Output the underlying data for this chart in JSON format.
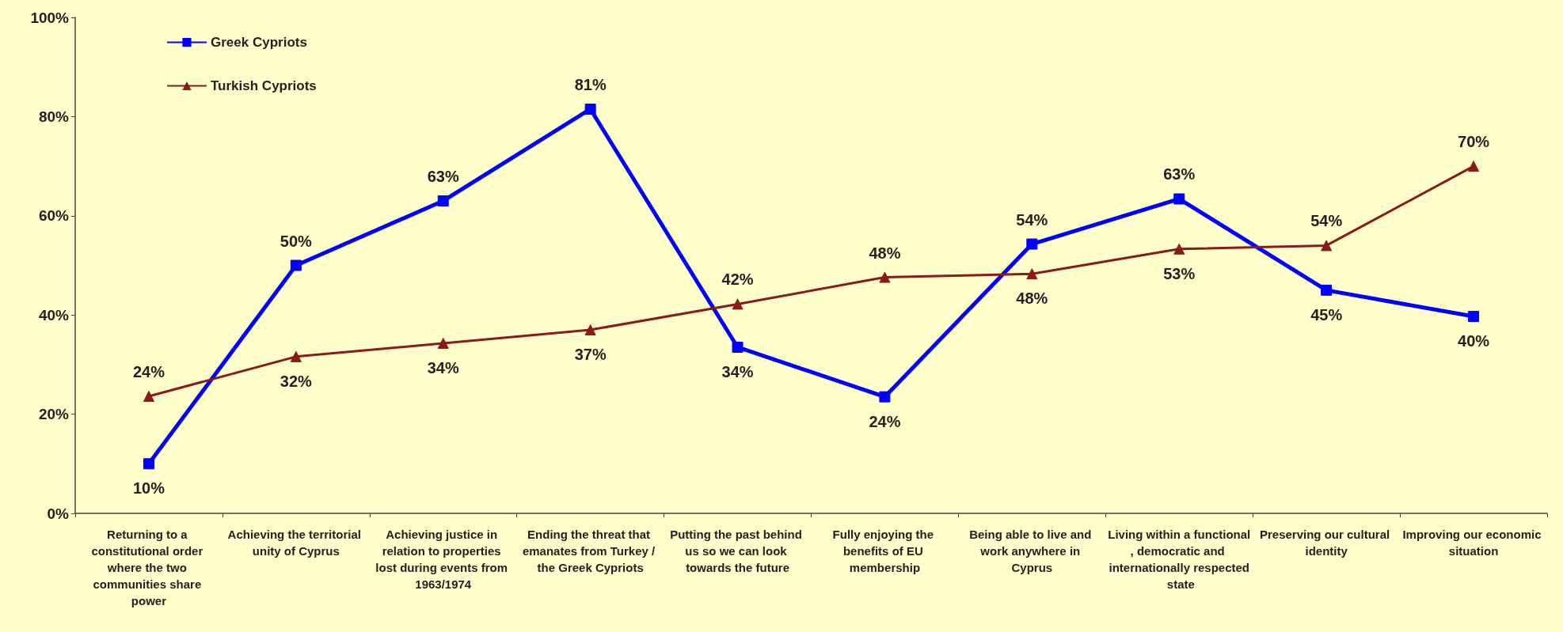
{
  "chart_data": {
    "type": "line",
    "categories": [
      "Returning to a constitutional order where the two communities share power",
      "Achieving the territorial unity of Cyprus",
      "Achieving justice in relation to properties lost during events from 1963/1974",
      "Ending the threat that emanates from Turkey / the Greek Cypriots",
      "Putting the past behind us so we can look towards the future",
      "Fully enjoying the benefits of EU membership",
      "Being able to live and work anywhere in Cyprus",
      "Living within a functional, democratic and internationally respected state",
      "Preserving our cultural identity",
      "Improving our economic situation"
    ],
    "series": [
      {
        "name": "Greek Cypriots",
        "color": "#0000ff",
        "marker": "square",
        "values": [
          10,
          50,
          63,
          81.5,
          33.5,
          23.5,
          54.3,
          63.4,
          45,
          39.7
        ],
        "value_labels": [
          "10%",
          "50%",
          "63%",
          "81%",
          "34%",
          "24%",
          "54%",
          "63%",
          "45%",
          "40%"
        ]
      },
      {
        "name": "Turkish Cypriots",
        "color": "#8b1a1a",
        "marker": "triangle",
        "values": [
          23.6,
          31.6,
          34.3,
          37,
          42.2,
          47.6,
          48.3,
          53.3,
          54,
          70
        ],
        "value_labels": [
          "24%",
          "32%",
          "34%",
          "37%",
          "42%",
          "48%",
          "48%",
          "53%",
          "54%",
          "70%"
        ]
      }
    ],
    "ylim": [
      0,
      100
    ],
    "yticks": [
      {
        "value": 0,
        "label": "0%"
      },
      {
        "value": 20,
        "label": "20%"
      },
      {
        "value": 40,
        "label": "40%"
      },
      {
        "value": 60,
        "label": "60%"
      },
      {
        "value": 80,
        "label": "80%"
      },
      {
        "value": 100,
        "label": "100%"
      }
    ],
    "grid": false,
    "legend": "top left",
    "line_style": "solid"
  }
}
